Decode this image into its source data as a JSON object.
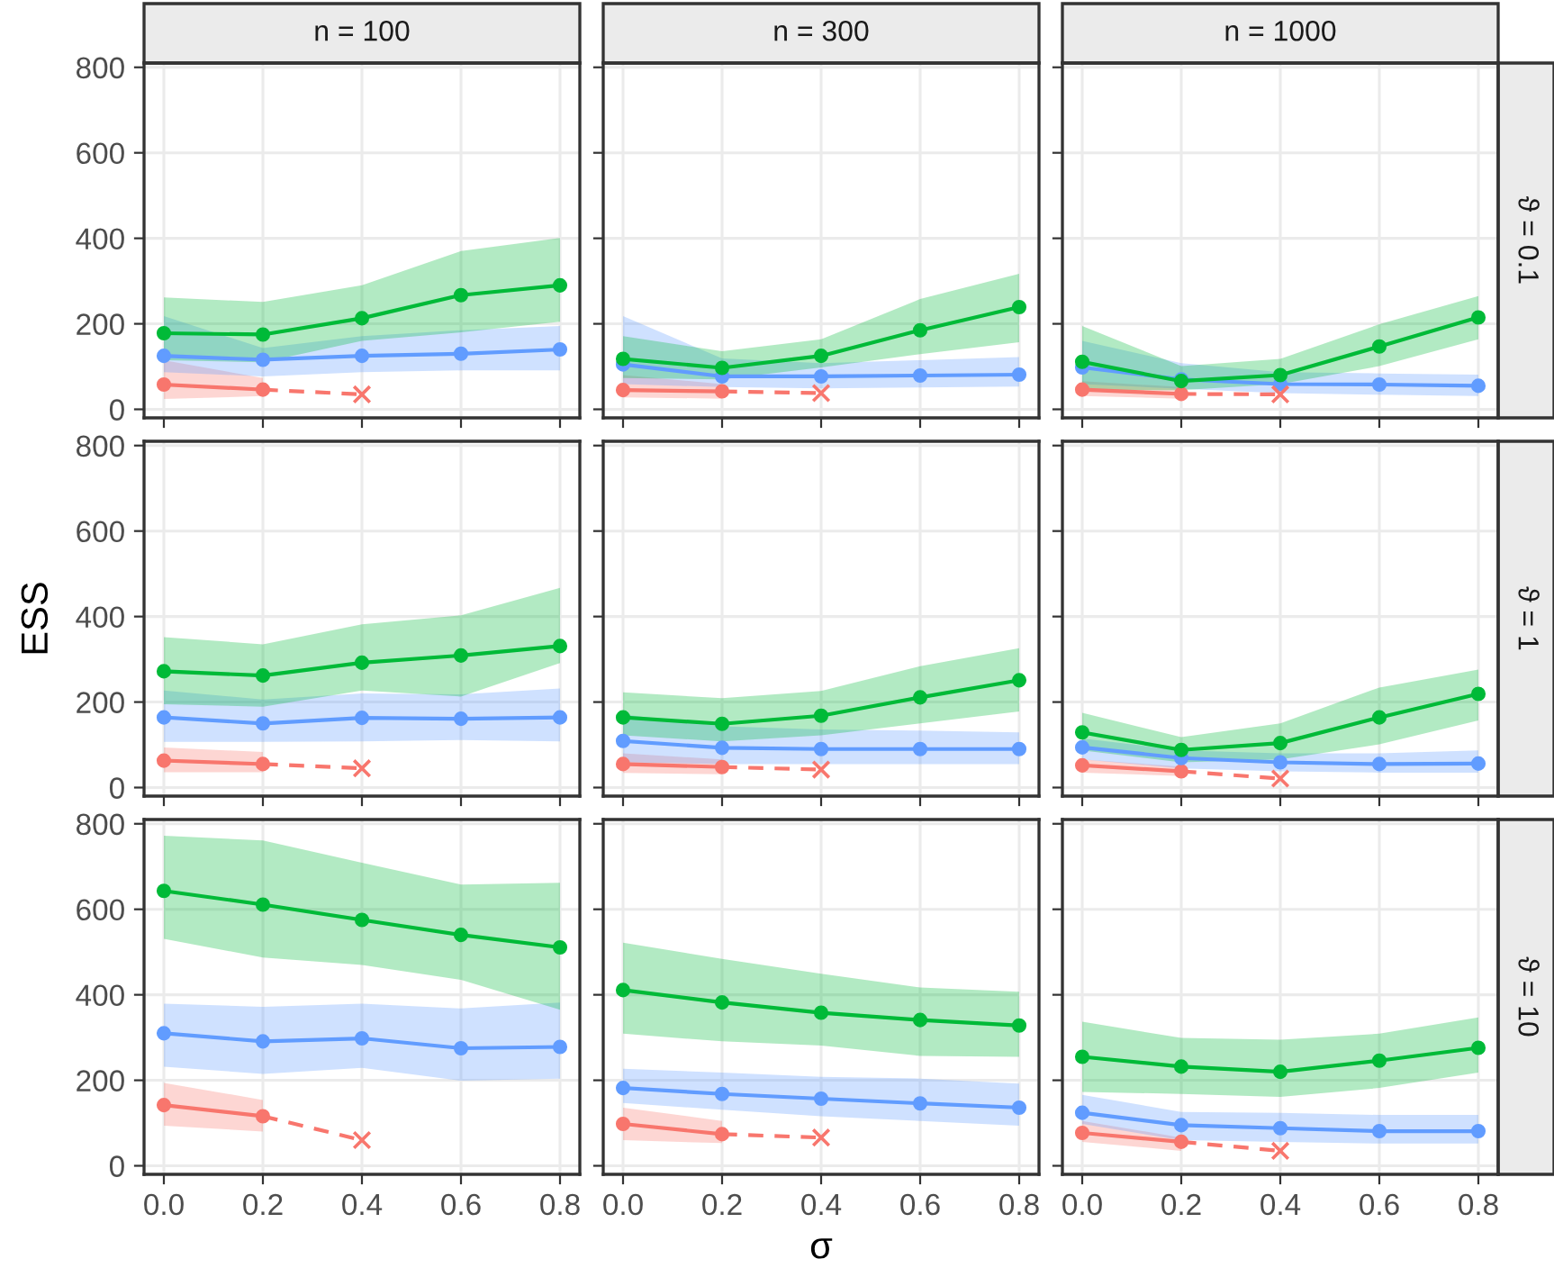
{
  "chart_data": [
    {
      "type": "line",
      "title": "n = 100",
      "tick_labels": "y",
      "xlim": [
        -0.04,
        0.84
      ],
      "ylim": [
        -20,
        810
      ],
      "xticks": [
        0,
        0.2,
        0.4,
        0.6,
        0.8
      ],
      "yticks": [
        0,
        200,
        400,
        600,
        800
      ],
      "grid": true,
      "series": [
        {
          "type": "line",
          "color": "#00ba38",
          "marker": "circle",
          "x": [
            0,
            0.2,
            0.4,
            0.6,
            0.8
          ],
          "values": [
            178,
            175,
            213,
            267,
            290
          ],
          "lower": [
            115,
            110,
            160,
            180,
            205
          ],
          "upper": [
            262,
            251,
            290,
            370,
            401
          ]
        },
        {
          "type": "line",
          "color": "#619cff",
          "marker": "circle",
          "x": [
            0,
            0.2,
            0.4,
            0.6,
            0.8
          ],
          "values": [
            125,
            116,
            125,
            130,
            140
          ],
          "lower": [
            87,
            77,
            87,
            91,
            91
          ],
          "upper": [
            218,
            143,
            171,
            185,
            195
          ]
        },
        {
          "type": "line",
          "color": "#f8766d",
          "marker": "circle",
          "x": [
            0,
            0.2
          ],
          "values": [
            58,
            46
          ],
          "lower": [
            24,
            31
          ],
          "upper": [
            115,
            73
          ]
        },
        {
          "type": "line",
          "color": "#f8766d",
          "line_style": "dashed",
          "x": [
            0.2,
            0.4
          ],
          "values": [
            46,
            35
          ]
        },
        {
          "type": "scatter",
          "color": "#f8766d",
          "marker": "cross",
          "x": [
            0.4
          ],
          "values": [
            35
          ]
        }
      ]
    },
    {
      "type": "line",
      "title": "n = 300",
      "tick_labels": false,
      "xlim": [
        -0.04,
        0.84
      ],
      "ylim": [
        -20,
        810
      ],
      "xticks": [
        0,
        0.2,
        0.4,
        0.6,
        0.8
      ],
      "yticks": [
        0,
        200,
        400,
        600,
        800
      ],
      "grid": true,
      "series": [
        {
          "type": "line",
          "color": "#00ba38",
          "marker": "circle",
          "x": [
            0,
            0.2,
            0.4,
            0.6,
            0.8
          ],
          "values": [
            118,
            97,
            125,
            185,
            239
          ],
          "lower": [
            73,
            70,
            98,
            129,
            157
          ],
          "upper": [
            171,
            136,
            164,
            258,
            317
          ]
        },
        {
          "type": "line",
          "color": "#619cff",
          "marker": "circle",
          "x": [
            0,
            0.2,
            0.4,
            0.6,
            0.8
          ],
          "values": [
            105,
            77,
            77,
            79,
            81
          ],
          "lower": [
            59,
            52,
            49,
            51,
            53
          ],
          "upper": [
            218,
            119,
            108,
            115,
            122
          ]
        },
        {
          "type": "line",
          "color": "#f8766d",
          "marker": "circle",
          "x": [
            0,
            0.2
          ],
          "values": [
            45,
            42
          ],
          "lower": [
            28,
            25
          ],
          "upper": [
            80,
            59
          ]
        },
        {
          "type": "line",
          "color": "#f8766d",
          "line_style": "dashed",
          "x": [
            0.2,
            0.4
          ],
          "values": [
            42,
            38
          ]
        },
        {
          "type": "scatter",
          "color": "#f8766d",
          "marker": "cross",
          "x": [
            0.4
          ],
          "values": [
            38
          ]
        }
      ]
    },
    {
      "type": "line",
      "title": "n = 1000",
      "y2label": "ϑ = 0.1",
      "tick_labels": false,
      "xlim": [
        -0.04,
        0.84
      ],
      "ylim": [
        -20,
        810
      ],
      "xticks": [
        0,
        0.2,
        0.4,
        0.6,
        0.8
      ],
      "yticks": [
        0,
        200,
        400,
        600,
        800
      ],
      "grid": true,
      "series": [
        {
          "type": "line",
          "color": "#00ba38",
          "marker": "circle",
          "x": [
            0,
            0.2,
            0.4,
            0.6,
            0.8
          ],
          "values": [
            111,
            66,
            80,
            147,
            215
          ],
          "lower": [
            45,
            45,
            59,
            101,
            164
          ],
          "upper": [
            195,
            101,
            118,
            199,
            265
          ]
        },
        {
          "type": "line",
          "color": "#619cff",
          "marker": "circle",
          "x": [
            0,
            0.2,
            0.4,
            0.6,
            0.8
          ],
          "values": [
            98,
            70,
            59,
            58,
            55
          ],
          "lower": [
            59,
            48,
            38,
            34,
            31
          ],
          "upper": [
            160,
            108,
            87,
            84,
            81
          ]
        },
        {
          "type": "line",
          "color": "#f8766d",
          "marker": "circle",
          "x": [
            0,
            0.2
          ],
          "values": [
            46,
            36
          ],
          "lower": [
            31,
            25
          ],
          "upper": [
            66,
            52
          ]
        },
        {
          "type": "line",
          "color": "#f8766d",
          "line_style": "dashed",
          "x": [
            0.2,
            0.4
          ],
          "values": [
            36,
            35
          ]
        },
        {
          "type": "scatter",
          "color": "#f8766d",
          "marker": "cross",
          "x": [
            0.4
          ],
          "values": [
            35
          ]
        }
      ]
    },
    {
      "type": "line",
      "ylabel": "ESS",
      "tick_labels": "y",
      "xlim": [
        -0.04,
        0.84
      ],
      "ylim": [
        -20,
        810
      ],
      "xticks": [
        0,
        0.2,
        0.4,
        0.6,
        0.8
      ],
      "yticks": [
        0,
        200,
        400,
        600,
        800
      ],
      "grid": true,
      "series": [
        {
          "type": "line",
          "color": "#00ba38",
          "marker": "circle",
          "x": [
            0,
            0.2,
            0.4,
            0.6,
            0.8
          ],
          "values": [
            272,
            262,
            292,
            309,
            331
          ],
          "lower": [
            195,
            189,
            227,
            213,
            291
          ],
          "upper": [
            352,
            335,
            382,
            403,
            467
          ]
        },
        {
          "type": "line",
          "color": "#619cff",
          "marker": "circle",
          "x": [
            0,
            0.2,
            0.4,
            0.6,
            0.8
          ],
          "values": [
            164,
            150,
            163,
            161,
            164
          ],
          "lower": [
            107,
            107,
            108,
            111,
            108
          ],
          "upper": [
            227,
            206,
            220,
            218,
            232
          ]
        },
        {
          "type": "line",
          "color": "#f8766d",
          "marker": "circle",
          "x": [
            0,
            0.2
          ],
          "values": [
            63,
            55
          ],
          "lower": [
            36,
            36
          ],
          "upper": [
            94,
            83
          ]
        },
        {
          "type": "line",
          "color": "#f8766d",
          "line_style": "dashed",
          "x": [
            0.2,
            0.4
          ],
          "values": [
            55,
            45
          ]
        },
        {
          "type": "scatter",
          "color": "#f8766d",
          "marker": "cross",
          "x": [
            0.4
          ],
          "values": [
            45
          ]
        }
      ]
    },
    {
      "type": "line",
      "tick_labels": false,
      "xlim": [
        -0.04,
        0.84
      ],
      "ylim": [
        -20,
        810
      ],
      "xticks": [
        0,
        0.2,
        0.4,
        0.6,
        0.8
      ],
      "yticks": [
        0,
        200,
        400,
        600,
        800
      ],
      "grid": true,
      "series": [
        {
          "type": "line",
          "color": "#00ba38",
          "marker": "circle",
          "x": [
            0,
            0.2,
            0.4,
            0.6,
            0.8
          ],
          "values": [
            164,
            149,
            168,
            211,
            251
          ],
          "lower": [
            122,
            108,
            122,
            150,
            178
          ],
          "upper": [
            223,
            209,
            226,
            284,
            326
          ]
        },
        {
          "type": "line",
          "color": "#619cff",
          "marker": "circle",
          "x": [
            0,
            0.2,
            0.4,
            0.6,
            0.8
          ],
          "values": [
            109,
            93,
            90,
            90,
            90
          ],
          "lower": [
            59,
            55,
            55,
            55,
            55
          ],
          "upper": [
            171,
            143,
            136,
            133,
            129
          ]
        },
        {
          "type": "line",
          "color": "#f8766d",
          "marker": "circle",
          "x": [
            0,
            0.2
          ],
          "values": [
            55,
            48
          ],
          "lower": [
            34,
            31
          ],
          "upper": [
            80,
            66
          ]
        },
        {
          "type": "line",
          "color": "#f8766d",
          "line_style": "dashed",
          "x": [
            0.2,
            0.4
          ],
          "values": [
            48,
            42
          ]
        },
        {
          "type": "scatter",
          "color": "#f8766d",
          "marker": "cross",
          "x": [
            0.4
          ],
          "values": [
            42
          ]
        }
      ]
    },
    {
      "type": "line",
      "y2label": "ϑ = 1",
      "tick_labels": false,
      "xlim": [
        -0.04,
        0.84
      ],
      "ylim": [
        -20,
        810
      ],
      "xticks": [
        0,
        0.2,
        0.4,
        0.6,
        0.8
      ],
      "yticks": [
        0,
        200,
        400,
        600,
        800
      ],
      "grid": true,
      "series": [
        {
          "type": "line",
          "color": "#00ba38",
          "marker": "circle",
          "x": [
            0,
            0.2,
            0.4,
            0.6,
            0.8
          ],
          "values": [
            129,
            88,
            104,
            164,
            219
          ],
          "lower": [
            87,
            59,
            66,
            101,
            157
          ],
          "upper": [
            175,
            118,
            150,
            234,
            276
          ]
        },
        {
          "type": "line",
          "color": "#619cff",
          "marker": "circle",
          "x": [
            0,
            0.2,
            0.4,
            0.6,
            0.8
          ],
          "values": [
            94,
            69,
            59,
            55,
            56
          ],
          "lower": [
            66,
            45,
            38,
            35,
            35
          ],
          "upper": [
            115,
            87,
            80,
            80,
            87
          ]
        },
        {
          "type": "line",
          "color": "#f8766d",
          "marker": "circle",
          "x": [
            0,
            0.2
          ],
          "values": [
            52,
            38
          ],
          "lower": [
            35,
            27
          ],
          "upper": [
            66,
            49
          ]
        },
        {
          "type": "line",
          "color": "#f8766d",
          "line_style": "dashed",
          "x": [
            0.2,
            0.4
          ],
          "values": [
            38,
            21
          ]
        },
        {
          "type": "scatter",
          "color": "#f8766d",
          "marker": "cross",
          "x": [
            0.4
          ],
          "values": [
            21
          ]
        }
      ]
    },
    {
      "type": "line",
      "xlim": [
        -0.04,
        0.84
      ],
      "ylim": [
        -20,
        810
      ],
      "xticks": [
        {
          "value": 0,
          "label": "0.0"
        },
        {
          "value": 0.2,
          "label": "0.2"
        },
        {
          "value": 0.4,
          "label": "0.4"
        },
        {
          "value": 0.6,
          "label": "0.6"
        },
        {
          "value": 0.8,
          "label": "0.8"
        }
      ],
      "yticks": [
        0,
        200,
        400,
        600,
        800
      ],
      "grid": true,
      "series": [
        {
          "type": "line",
          "color": "#00ba38",
          "marker": "circle",
          "x": [
            0,
            0.2,
            0.4,
            0.6,
            0.8
          ],
          "values": [
            643,
            611,
            575,
            540,
            511
          ],
          "lower": [
            531,
            487,
            470,
            435,
            365
          ],
          "upper": [
            772,
            761,
            709,
            658,
            662
          ]
        },
        {
          "type": "line",
          "color": "#619cff",
          "marker": "circle",
          "x": [
            0,
            0.2,
            0.4,
            0.6,
            0.8
          ],
          "values": [
            310,
            291,
            298,
            275,
            278
          ],
          "lower": [
            232,
            215,
            229,
            199,
            204
          ],
          "upper": [
            379,
            372,
            379,
            368,
            382
          ]
        },
        {
          "type": "line",
          "color": "#f8766d",
          "marker": "circle",
          "x": [
            0,
            0.2
          ],
          "values": [
            142,
            116
          ],
          "lower": [
            94,
            80
          ],
          "upper": [
            194,
            154
          ]
        },
        {
          "type": "line",
          "color": "#f8766d",
          "line_style": "dashed",
          "x": [
            0.2,
            0.4
          ],
          "values": [
            116,
            60
          ]
        },
        {
          "type": "scatter",
          "color": "#f8766d",
          "marker": "cross",
          "x": [
            0.4
          ],
          "values": [
            60
          ]
        }
      ]
    },
    {
      "type": "line",
      "xlabel": "σ",
      "tick_labels": "x",
      "xlim": [
        -0.04,
        0.84
      ],
      "ylim": [
        -20,
        810
      ],
      "xticks": [
        {
          "value": 0,
          "label": "0.0"
        },
        {
          "value": 0.2,
          "label": "0.2"
        },
        {
          "value": 0.4,
          "label": "0.4"
        },
        {
          "value": 0.6,
          "label": "0.6"
        },
        {
          "value": 0.8,
          "label": "0.8"
        }
      ],
      "yticks": [
        0,
        200,
        400,
        600,
        800
      ],
      "grid": true,
      "series": [
        {
          "type": "line",
          "color": "#00ba38",
          "marker": "circle",
          "x": [
            0,
            0.2,
            0.4,
            0.6,
            0.8
          ],
          "values": [
            411,
            382,
            358,
            341,
            328
          ],
          "lower": [
            309,
            291,
            281,
            257,
            255
          ],
          "upper": [
            522,
            484,
            449,
            417,
            407
          ]
        },
        {
          "type": "line",
          "color": "#619cff",
          "marker": "circle",
          "x": [
            0,
            0.2,
            0.4,
            0.6,
            0.8
          ],
          "values": [
            182,
            168,
            157,
            146,
            136
          ],
          "lower": [
            147,
            131,
            116,
            105,
            94
          ],
          "upper": [
            227,
            218,
            208,
            204,
            192
          ]
        },
        {
          "type": "line",
          "color": "#f8766d",
          "marker": "circle",
          "x": [
            0,
            0.2
          ],
          "values": [
            98,
            74
          ],
          "lower": [
            60,
            53
          ],
          "upper": [
            136,
            105
          ]
        },
        {
          "type": "line",
          "color": "#f8766d",
          "line_style": "dashed",
          "x": [
            0.2,
            0.4
          ],
          "values": [
            74,
            66
          ]
        },
        {
          "type": "scatter",
          "color": "#f8766d",
          "marker": "cross",
          "x": [
            0.4
          ],
          "values": [
            66
          ]
        }
      ]
    },
    {
      "type": "line",
      "y2label": "ϑ = 10",
      "tick_labels": "x",
      "xlim": [
        -0.04,
        0.84
      ],
      "ylim": [
        -20,
        810
      ],
      "xticks": [
        {
          "value": 0,
          "label": "0.0"
        },
        {
          "value": 0.2,
          "label": "0.2"
        },
        {
          "value": 0.4,
          "label": "0.4"
        },
        {
          "value": 0.6,
          "label": "0.6"
        },
        {
          "value": 0.8,
          "label": "0.8"
        }
      ],
      "yticks": [
        0,
        200,
        400,
        600,
        800
      ],
      "grid": true,
      "series": [
        {
          "type": "line",
          "color": "#00ba38",
          "marker": "circle",
          "x": [
            0,
            0.2,
            0.4,
            0.6,
            0.8
          ],
          "values": [
            255,
            232,
            220,
            246,
            276
          ],
          "lower": [
            173,
            168,
            161,
            182,
            218
          ],
          "upper": [
            337,
            299,
            295,
            309,
            347
          ]
        },
        {
          "type": "line",
          "color": "#619cff",
          "marker": "circle",
          "x": [
            0,
            0.2,
            0.4,
            0.6,
            0.8
          ],
          "values": [
            124,
            95,
            88,
            81,
            81
          ],
          "lower": [
            98,
            60,
            56,
            52,
            52
          ],
          "upper": [
            166,
            126,
            124,
            119,
            119
          ]
        },
        {
          "type": "line",
          "color": "#f8766d",
          "marker": "circle",
          "x": [
            0,
            0.2
          ],
          "values": [
            77,
            56
          ],
          "lower": [
            56,
            35
          ],
          "upper": [
            105,
            66
          ]
        },
        {
          "type": "line",
          "color": "#f8766d",
          "line_style": "dashed",
          "x": [
            0.2,
            0.4
          ],
          "values": [
            56,
            35
          ]
        },
        {
          "type": "scatter",
          "color": "#f8766d",
          "marker": "cross",
          "x": [
            0.4
          ],
          "values": [
            35
          ]
        }
      ]
    }
  ]
}
